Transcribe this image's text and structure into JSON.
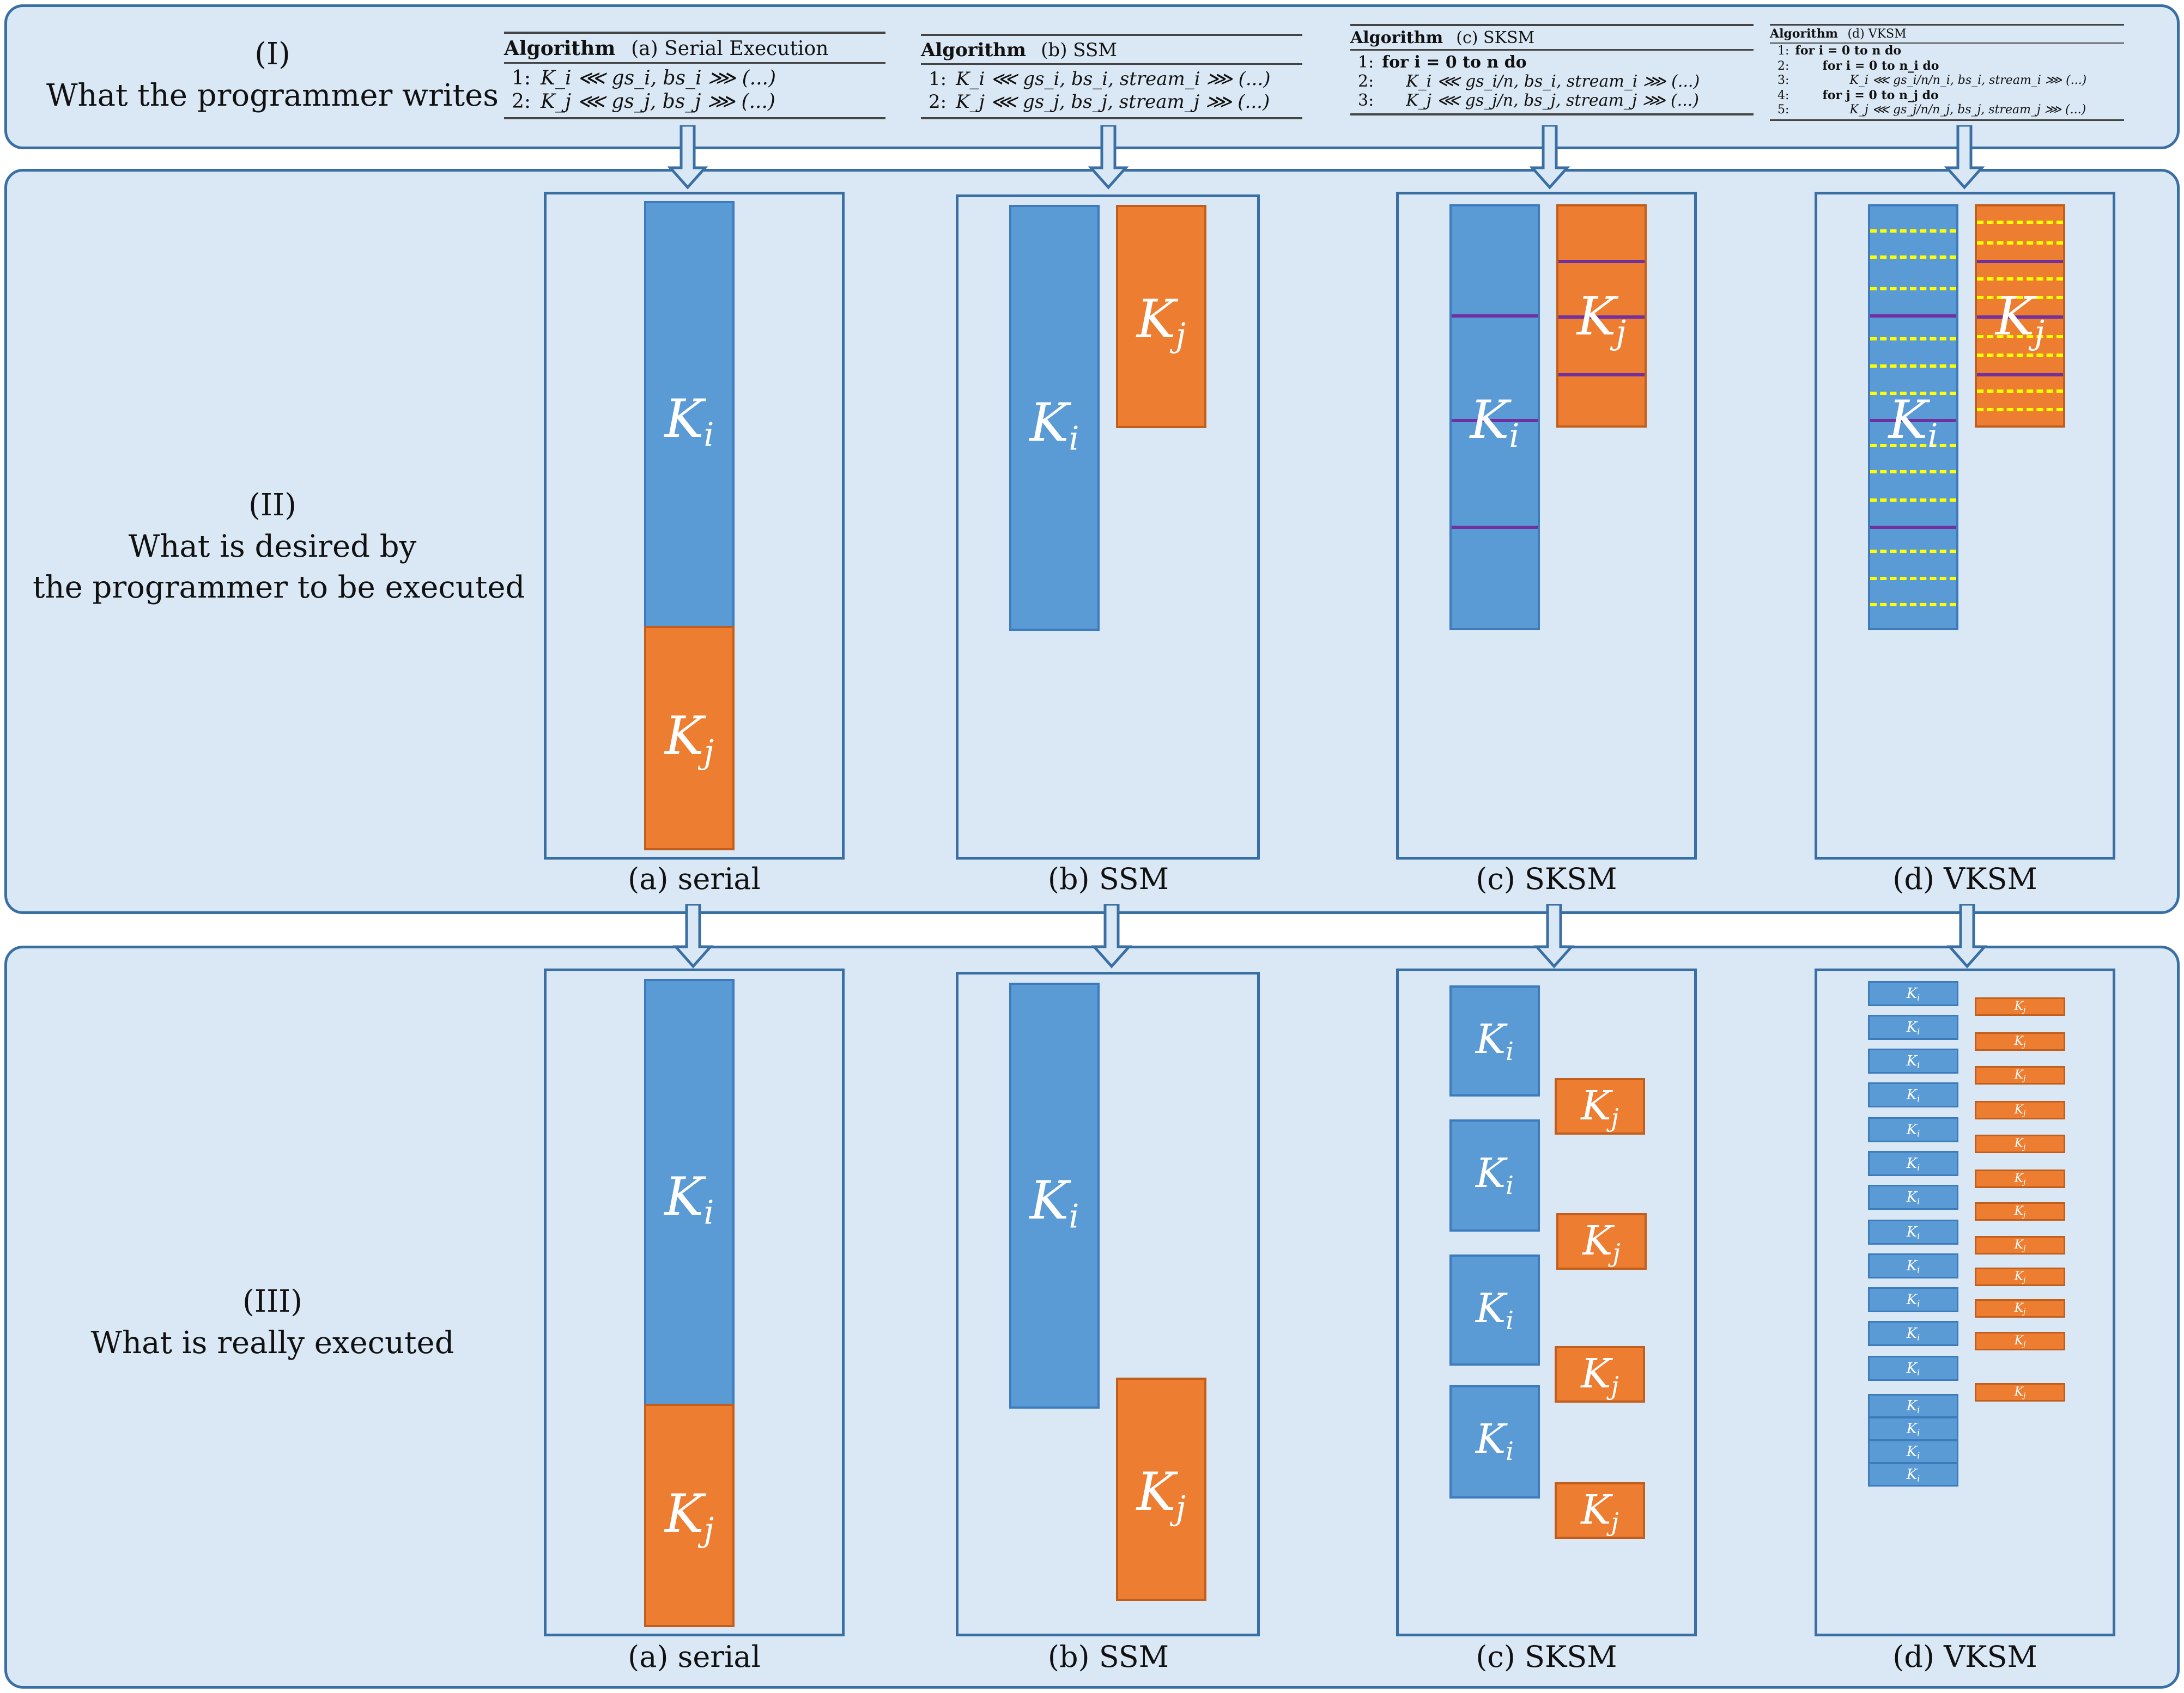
{
  "rows": {
    "row1": {
      "label_line1": "(I)",
      "label_line2": "What the programmer writes"
    },
    "row2": {
      "label_line1": "(II)",
      "label_line2": "What is desired by",
      "label_line3": "the programmer to be executed"
    },
    "row3": {
      "label_line1": "(III)",
      "label_line2": "What is really executed"
    }
  },
  "algorithms": {
    "serial": {
      "keyword": "Algorithm",
      "title": "(a) Serial Execution",
      "lines": [
        {
          "num": "1:",
          "text": "K_i ⋘ gs_i, bs_i ⋙ (...)"
        },
        {
          "num": "2:",
          "text": "K_j ⋘ gs_j, bs_j ⋙ (...)"
        }
      ]
    },
    "ssm": {
      "keyword": "Algorithm",
      "title": "(b) SSM",
      "lines": [
        {
          "num": "1:",
          "text": "K_i ⋘ gs_i, bs_i, stream_i ⋙ (...)"
        },
        {
          "num": "2:",
          "text": "K_j ⋘ gs_j, bs_j, stream_j ⋙ (...)"
        }
      ]
    },
    "sksm": {
      "keyword": "Algorithm",
      "title": "(c) SKSM",
      "lines": [
        {
          "num": "1:",
          "text": "for i = 0 to n do"
        },
        {
          "num": "2:",
          "text": "K_i ⋘ gs_i/n, bs_i, stream_i ⋙ (...)"
        },
        {
          "num": "3:",
          "text": "K_j ⋘ gs_j/n, bs_j, stream_j ⋙ (...)"
        }
      ]
    },
    "vksm": {
      "keyword": "Algorithm",
      "title": "(d) VKSM",
      "lines": [
        {
          "num": "1:",
          "text": "for i = 0 to n do"
        },
        {
          "num": "2:",
          "text": "for i = 0 to n_i do"
        },
        {
          "num": "3:",
          "text": "K_i ⋘ gs_i/n/n_i, bs_i, stream_i ⋙ (...)"
        },
        {
          "num": "4:",
          "text": "for j = 0 to n_j do"
        },
        {
          "num": "5:",
          "text": "K_j ⋘ gs_j/n/n_j, bs_j, stream_j ⋙ (...)"
        }
      ]
    }
  },
  "captions": {
    "serial": "(a) serial",
    "ssm": "(b) SSM",
    "sksm": "(c) SKSM",
    "vksm": "(d) VKSM"
  },
  "kernel_labels": {
    "i_base": "K",
    "i_sub": "i",
    "j_base": "K",
    "j_sub": "j"
  },
  "colors": {
    "kernel_i": "#5b9bd5",
    "kernel_j": "#ed7d31",
    "row_background": "#dae8f5",
    "border": "#3a6fa3",
    "slice_line": "#7030a0",
    "sub_slice_line": "#ffff00"
  }
}
